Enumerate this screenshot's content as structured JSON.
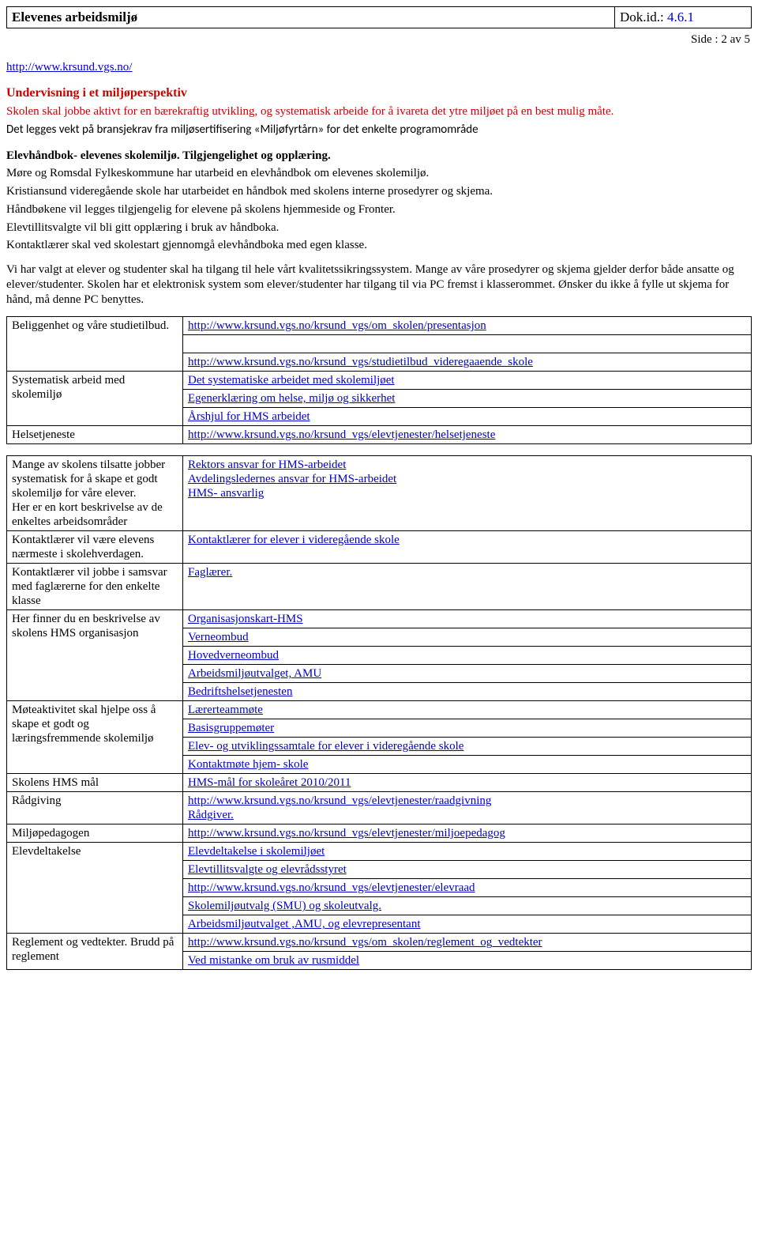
{
  "header": {
    "title": "Elevenes arbeidsmiljø",
    "docid_label": "Dok.id.: ",
    "docid_value": "4.6.1",
    "page_indicator": "Side  : 2 av 5"
  },
  "top_link": {
    "text": "http://www.krsund.vgs.no/"
  },
  "undervisning": {
    "title": "Undervisning i et miljøperspektiv",
    "para": "Skolen skal jobbe aktivt for en bærekraftig utvikling, og systematisk arbeide for å ivareta det ytre miljøet på en best mulig måte.",
    "bransjekrav": "Det legges vekt på bransjekrav fra miljøsertifisering «Miljøfyrtårn» for det enkelte programområde"
  },
  "elevhandbok": {
    "heading": "Elevhåndbok- elevenes skolemiljø. Tilgjengelighet og opplæring.",
    "p1": "Møre og Romsdal Fylkeskommune har utarbeid en elevhåndbok om elevenes skolemiljø.",
    "p2": "Kristiansund videregående skole har utarbeidet en håndbok med skolens interne prosedyrer og skjema.",
    "p3": "Håndbøkene vil legges tilgjengelig for elevene på skolens hjemmeside og Fronter.",
    "p4": "Elevtillitsvalgte vil bli gitt opplæring i bruk av håndboka.",
    "p5": "Kontaktlærer skal ved skolestart gjennomgå elevhåndboka med egen klasse."
  },
  "kvalitet_para": "Vi har valgt at elever og studenter skal ha tilgang til hele vårt kvalitetssikringssystem. Mange av våre prosedyrer og skjema gjelder derfor både ansatte og elever/studenter. Skolen har et elektronisk system som elever/studenter har tilgang til via PC fremst i klasserommet.  Ønsker du ikke å fylle ut skjema for hånd, må denne PC benyttes.",
  "table": {
    "rows": [
      {
        "left": "Beliggenhet og våre studietilbud.",
        "right_links": [
          "http://www.krsund.vgs.no/krsund_vgs/om_skolen/presentasjon",
          "",
          "http://www.krsund.vgs.no/krsund_vgs/studietilbud_videregaaende_skole"
        ],
        "left_rowspan": 3
      },
      {
        "left": "Systematisk arbeid med skolemiljø",
        "right_links": [
          "Det systematiske arbeidet med skolemiljøet",
          "Egenerklæring om helse, miljø og sikkerhet",
          "Årshjul for HMS arbeidet"
        ],
        "left_rowspan": 3
      },
      {
        "left": "Helsetjeneste",
        "right_links": [
          "http://www.krsund.vgs.no/krsund_vgs/elevtjenester/helsetjeneste"
        ],
        "bottom_gap": true
      },
      {
        "left": "Mange av skolens tilsatte jobber systematisk for å skape et godt skolemiljø for våre elever.\nHer er en kort beskrivelse av de enkeltes arbeidsområder",
        "right_links": [
          "Rektors ansvar for HMS-arbeidet",
          "Avdelingsledernes ansvar for HMS-arbeidet",
          "HMS- ansvarlig"
        ],
        "single_cell_right": true
      },
      {
        "left": "Kontaktlærer vil være elevens nærmeste i skolehverdagen.",
        "right_links": [
          "Kontaktlærer for elever i videregående skole"
        ],
        "single_cell_right": true
      },
      {
        "left": "Kontaktlærer vil jobbe i samsvar med faglærerne for den enkelte klasse",
        "right_links": [
          "Faglærer."
        ],
        "single_cell_right": true
      },
      {
        "left": "Her finner du en beskrivelse av skolens HMS organisasjon",
        "right_links": [
          "Organisasjonskart-HMS",
          "Verneombud",
          "Hovedverneombud",
          "Arbeidsmiljøutvalget, AMU",
          "Bedriftshelsetjenesten"
        ],
        "left_rowspan": 5
      },
      {
        "left": "Møteaktivitet skal hjelpe oss å skape et godt og læringsfremmende skolemiljø",
        "right_links": [
          "Lærerteammøte",
          "Basisgruppemøter",
          "Elev- og utviklingssamtale for elever i videregående skole",
          "Kontaktmøte hjem- skole"
        ],
        "left_rowspan": 4
      },
      {
        "left": "Skolens HMS mål",
        "right_links": [
          "HMS-mål for skoleåret 2010/2011"
        ]
      },
      {
        "left": "Rådgiving",
        "right_links": [
          "http://www.krsund.vgs.no/krsund_vgs/elevtjenester/raadgivning",
          "Rådgiver."
        ],
        "single_cell_right": true
      },
      {
        "left": "Miljøpedagogen",
        "right_links": [
          "http://www.krsund.vgs.no/krsund_vgs/elevtjenester/miljoepedagog"
        ]
      },
      {
        "left": "Elevdeltakelse",
        "right_links": [
          "Elevdeltakelse i skolemiljøet",
          "Elevtillitsvalgte og elevrådsstyret",
          "http://www.krsund.vgs.no/krsund_vgs/elevtjenester/elevraad",
          "Skolemiljøutvalg (SMU) og skoleutvalg.",
          "Arbeidsmiljøutvalget ,AMU, og elevrepresentant"
        ],
        "left_rowspan": 5
      },
      {
        "left": "Reglement og vedtekter. Brudd på reglement",
        "right_links": [
          "http://www.krsund.vgs.no/krsund_vgs/om_skolen/reglement_og_vedtekter",
          "Ved mistanke om bruk av rusmiddel"
        ],
        "left_rowspan": 2
      }
    ]
  }
}
